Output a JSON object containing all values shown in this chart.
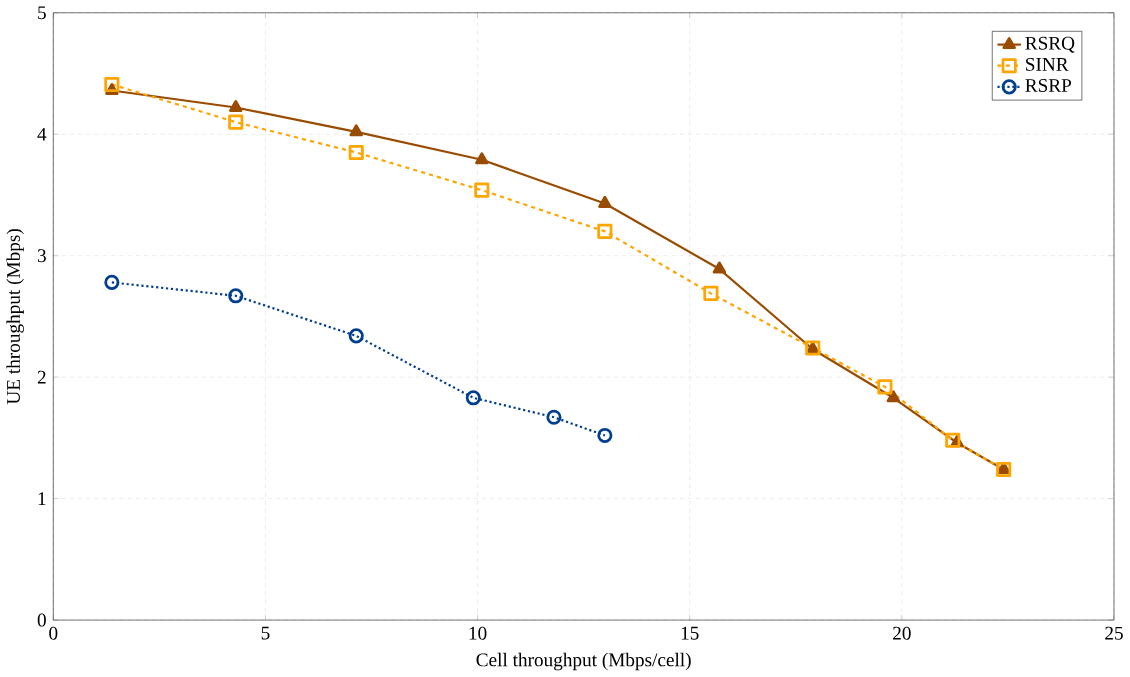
{
  "chart_data": {
    "type": "line",
    "xlabel": "Cell throughput (Mbps/cell)",
    "ylabel": "UE throughput (Mbps)",
    "xlim": [
      0,
      25
    ],
    "ylim": [
      0,
      5
    ],
    "xticks": [
      0,
      5,
      10,
      15,
      20,
      25
    ],
    "yticks": [
      0,
      1,
      2,
      3,
      4,
      5
    ],
    "grid": true,
    "legend": "top right",
    "series": [
      {
        "name": "RSRQ",
        "color": "#994c00",
        "marker": "triangle",
        "line_style": "solid",
        "x": [
          1.38,
          4.3,
          7.14,
          10.1,
          13.0,
          15.7,
          17.9,
          19.8,
          21.3,
          22.4
        ],
        "values": [
          4.36,
          4.22,
          4.02,
          3.79,
          3.43,
          2.89,
          2.23,
          1.83,
          1.46,
          1.24
        ]
      },
      {
        "name": "SINR",
        "color": "#ffa500",
        "marker": "square",
        "line_style": "dashed",
        "x": [
          1.38,
          4.3,
          7.14,
          10.1,
          13.0,
          15.5,
          17.9,
          19.6,
          21.2,
          22.4
        ],
        "values": [
          4.41,
          4.1,
          3.85,
          3.54,
          3.2,
          2.69,
          2.24,
          1.92,
          1.48,
          1.24
        ]
      },
      {
        "name": "RSRP",
        "color": "#003f8f",
        "marker": "circle",
        "line_style": "dotted",
        "x": [
          1.38,
          4.3,
          7.14,
          9.9,
          11.8,
          13.0
        ],
        "values": [
          2.78,
          2.67,
          2.34,
          1.83,
          1.67,
          1.52
        ]
      }
    ]
  }
}
